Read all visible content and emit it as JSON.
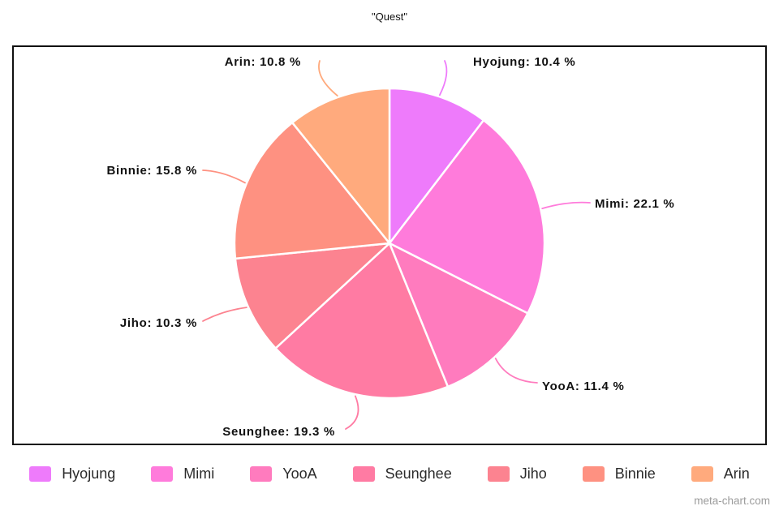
{
  "title": "\"Quest\"",
  "watermark": "meta-chart.com",
  "chart_data": {
    "type": "pie",
    "title": "\"Quest\"",
    "labels": [
      "Hyojung",
      "Mimi",
      "YooA",
      "Seunghee",
      "Jiho",
      "Binnie",
      "Arin"
    ],
    "values": [
      10.4,
      22.1,
      11.4,
      19.3,
      10.3,
      15.8,
      10.8
    ],
    "unit": "%",
    "colors": [
      "#EE7BFB",
      "#FF7BDB",
      "#FF7BBE",
      "#FF7BA3",
      "#FC8390",
      "#FE9181",
      "#FFAA7D"
    ],
    "start_angle_deg": 0,
    "direction": "clockwise",
    "legend_position": "bottom",
    "slice_labels": [
      "Hyojung: 10.4 %",
      "Mimi: 22.1 %",
      "YooA: 11.4 %",
      "Seunghee: 19.3 %",
      "Jiho: 10.3 %",
      "Binnie: 15.8 %",
      "Arin: 10.8 %"
    ]
  }
}
